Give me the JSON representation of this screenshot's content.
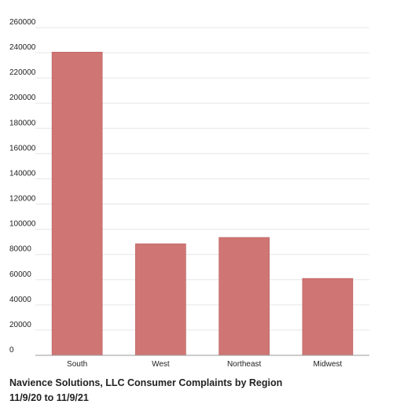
{
  "chart_data": {
    "type": "bar",
    "title": "Navience Solutions, LLC Consumer Complaints by Region",
    "subtitle": "11/9/20 to 11/9/21",
    "xlabel": "",
    "ylabel": "",
    "categories": [
      "South",
      "West",
      "Northeast",
      "Midwest"
    ],
    "values": [
      240500,
      88500,
      93500,
      61000
    ],
    "ylim": [
      0,
      260000
    ],
    "yticks": [
      0,
      20000,
      40000,
      60000,
      80000,
      100000,
      120000,
      140000,
      160000,
      180000,
      200000,
      220000,
      240000,
      260000
    ],
    "grid": true,
    "legend": "none",
    "bar_color": "#cf7674",
    "bar_edge_color": "#b85a58",
    "grid_color": "#e6e6e6",
    "axis_color": "#999999"
  }
}
